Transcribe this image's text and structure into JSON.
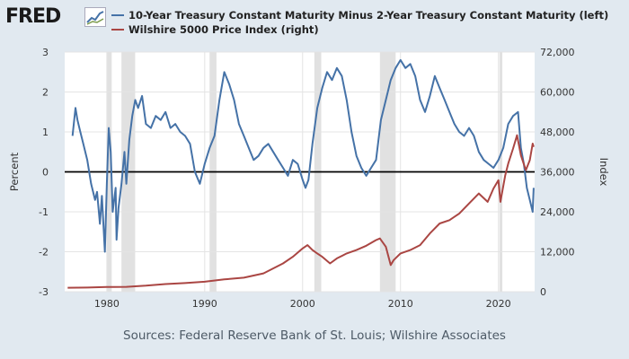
{
  "header": {
    "logo_text": "FRED",
    "logo_icon": "chart-line-icon"
  },
  "source_text": "Sources: Federal Reserve Bank of St. Louis; Wilshire Associates",
  "chart_data": {
    "type": "line",
    "title": "",
    "x_range": [
      1975.7,
      2023.7
    ],
    "x_ticks": [
      1980,
      1990,
      2000,
      2010,
      2020
    ],
    "left_axis": {
      "label": "Percent",
      "range": [
        -3,
        3
      ],
      "ticks": [
        -3,
        -2,
        -1,
        0,
        1,
        2,
        3
      ]
    },
    "right_axis": {
      "label": "Index",
      "range": [
        0,
        72000
      ],
      "ticks": [
        0,
        12000,
        24000,
        36000,
        48000,
        60000,
        72000
      ],
      "tick_labels": [
        "0",
        "12,000",
        "24,000",
        "36,000",
        "48,000",
        "60,000",
        "72,000"
      ]
    },
    "recessions": [
      [
        1980.0,
        1980.5
      ],
      [
        1981.5,
        1982.9
      ],
      [
        1990.5,
        1991.2
      ],
      [
        2001.2,
        2001.9
      ],
      [
        2007.9,
        2009.5
      ],
      [
        2020.1,
        2020.4
      ]
    ],
    "series": [
      {
        "name": "10-Year Treasury Constant Maturity Minus 2-Year Treasury Constant Maturity (left)",
        "axis": "left",
        "color": "#4572a7",
        "x": [
          1976.5,
          1976.8,
          1977.0,
          1977.3,
          1977.6,
          1978.0,
          1978.4,
          1978.8,
          1979.0,
          1979.3,
          1979.5,
          1979.8,
          1980.0,
          1980.2,
          1980.4,
          1980.6,
          1980.9,
          1981.0,
          1981.2,
          1981.5,
          1981.8,
          1982.0,
          1982.3,
          1982.6,
          1982.9,
          1983.2,
          1983.6,
          1984.0,
          1984.5,
          1985.0,
          1985.5,
          1986.0,
          1986.5,
          1987.0,
          1987.5,
          1988.0,
          1988.5,
          1989.0,
          1989.5,
          1990.0,
          1990.5,
          1991.0,
          1991.5,
          1992.0,
          1992.5,
          1993.0,
          1993.5,
          1994.0,
          1994.5,
          1995.0,
          1995.5,
          1996.0,
          1996.5,
          1997.0,
          1997.5,
          1998.0,
          1998.5,
          1999.0,
          1999.5,
          2000.0,
          2000.3,
          2000.6,
          2001.0,
          2001.5,
          2002.0,
          2002.5,
          2003.0,
          2003.5,
          2004.0,
          2004.5,
          2005.0,
          2005.5,
          2006.0,
          2006.5,
          2007.0,
          2007.5,
          2008.0,
          2008.5,
          2009.0,
          2009.5,
          2010.0,
          2010.5,
          2011.0,
          2011.5,
          2012.0,
          2012.5,
          2013.0,
          2013.5,
          2014.0,
          2014.5,
          2015.0,
          2015.5,
          2016.0,
          2016.5,
          2017.0,
          2017.5,
          2018.0,
          2018.5,
          2019.0,
          2019.5,
          2020.0,
          2020.5,
          2021.0,
          2021.5,
          2022.0,
          2022.3,
          2022.6,
          2022.9,
          2023.2,
          2023.5,
          2023.6
        ],
        "values": [
          0.9,
          1.6,
          1.3,
          1.0,
          0.7,
          0.3,
          -0.3,
          -0.7,
          -0.5,
          -1.3,
          -0.6,
          -2.0,
          -0.3,
          1.1,
          0.5,
          -1.0,
          -0.4,
          -1.7,
          -0.9,
          -0.3,
          0.5,
          -0.3,
          0.8,
          1.4,
          1.8,
          1.6,
          1.9,
          1.2,
          1.1,
          1.4,
          1.3,
          1.5,
          1.1,
          1.2,
          1.0,
          0.9,
          0.7,
          0.0,
          -0.3,
          0.2,
          0.6,
          0.9,
          1.8,
          2.5,
          2.2,
          1.8,
          1.2,
          0.9,
          0.6,
          0.3,
          0.4,
          0.6,
          0.7,
          0.5,
          0.3,
          0.1,
          -0.1,
          0.3,
          0.2,
          -0.2,
          -0.4,
          -0.2,
          0.7,
          1.6,
          2.1,
          2.5,
          2.3,
          2.6,
          2.4,
          1.8,
          1.0,
          0.4,
          0.1,
          -0.1,
          0.1,
          0.3,
          1.3,
          1.8,
          2.3,
          2.6,
          2.8,
          2.6,
          2.7,
          2.4,
          1.8,
          1.5,
          1.9,
          2.4,
          2.1,
          1.8,
          1.5,
          1.2,
          1.0,
          0.9,
          1.1,
          0.9,
          0.5,
          0.3,
          0.2,
          0.1,
          0.3,
          0.6,
          1.2,
          1.4,
          1.5,
          0.6,
          0.2,
          -0.4,
          -0.7,
          -1.0,
          -0.4
        ],
        "legend_label": "10-Year Treasury Constant Maturity Minus 2-Year Treasury Constant Maturity (left)"
      },
      {
        "name": "Wilshire 5000 Price Index (right)",
        "axis": "right",
        "color": "#aa4643",
        "x": [
          1976,
          1978,
          1980,
          1982,
          1984,
          1986,
          1988,
          1990,
          1992,
          1994,
          1996,
          1998,
          1999,
          2000,
          2000.5,
          2001,
          2001.5,
          2002,
          2002.8,
          2003.5,
          2004.5,
          2005.5,
          2006.5,
          2007.5,
          2007.9,
          2008.5,
          2009.0,
          2009.3,
          2010,
          2011,
          2012,
          2013,
          2014,
          2015,
          2016,
          2017,
          2018,
          2018.9,
          2019.5,
          2020.0,
          2020.2,
          2020.7,
          2021.0,
          2021.5,
          2021.9,
          2022.3,
          2022.8,
          2023.2,
          2023.5,
          2023.6
        ],
        "values": [
          1200,
          1250,
          1400,
          1450,
          1800,
          2300,
          2600,
          3000,
          3700,
          4200,
          5500,
          8500,
          10500,
          13000,
          14000,
          12500,
          11500,
          10500,
          8500,
          10000,
          11500,
          12500,
          13800,
          15500,
          16000,
          13500,
          8000,
          9500,
          11500,
          12500,
          14000,
          17500,
          20500,
          21500,
          23500,
          26500,
          29500,
          27000,
          31000,
          33500,
          27000,
          35000,
          38500,
          43000,
          47000,
          41000,
          36500,
          39500,
          44500,
          43500
        ],
        "legend_label": "Wilshire 5000 Price Index (right)"
      }
    ]
  }
}
